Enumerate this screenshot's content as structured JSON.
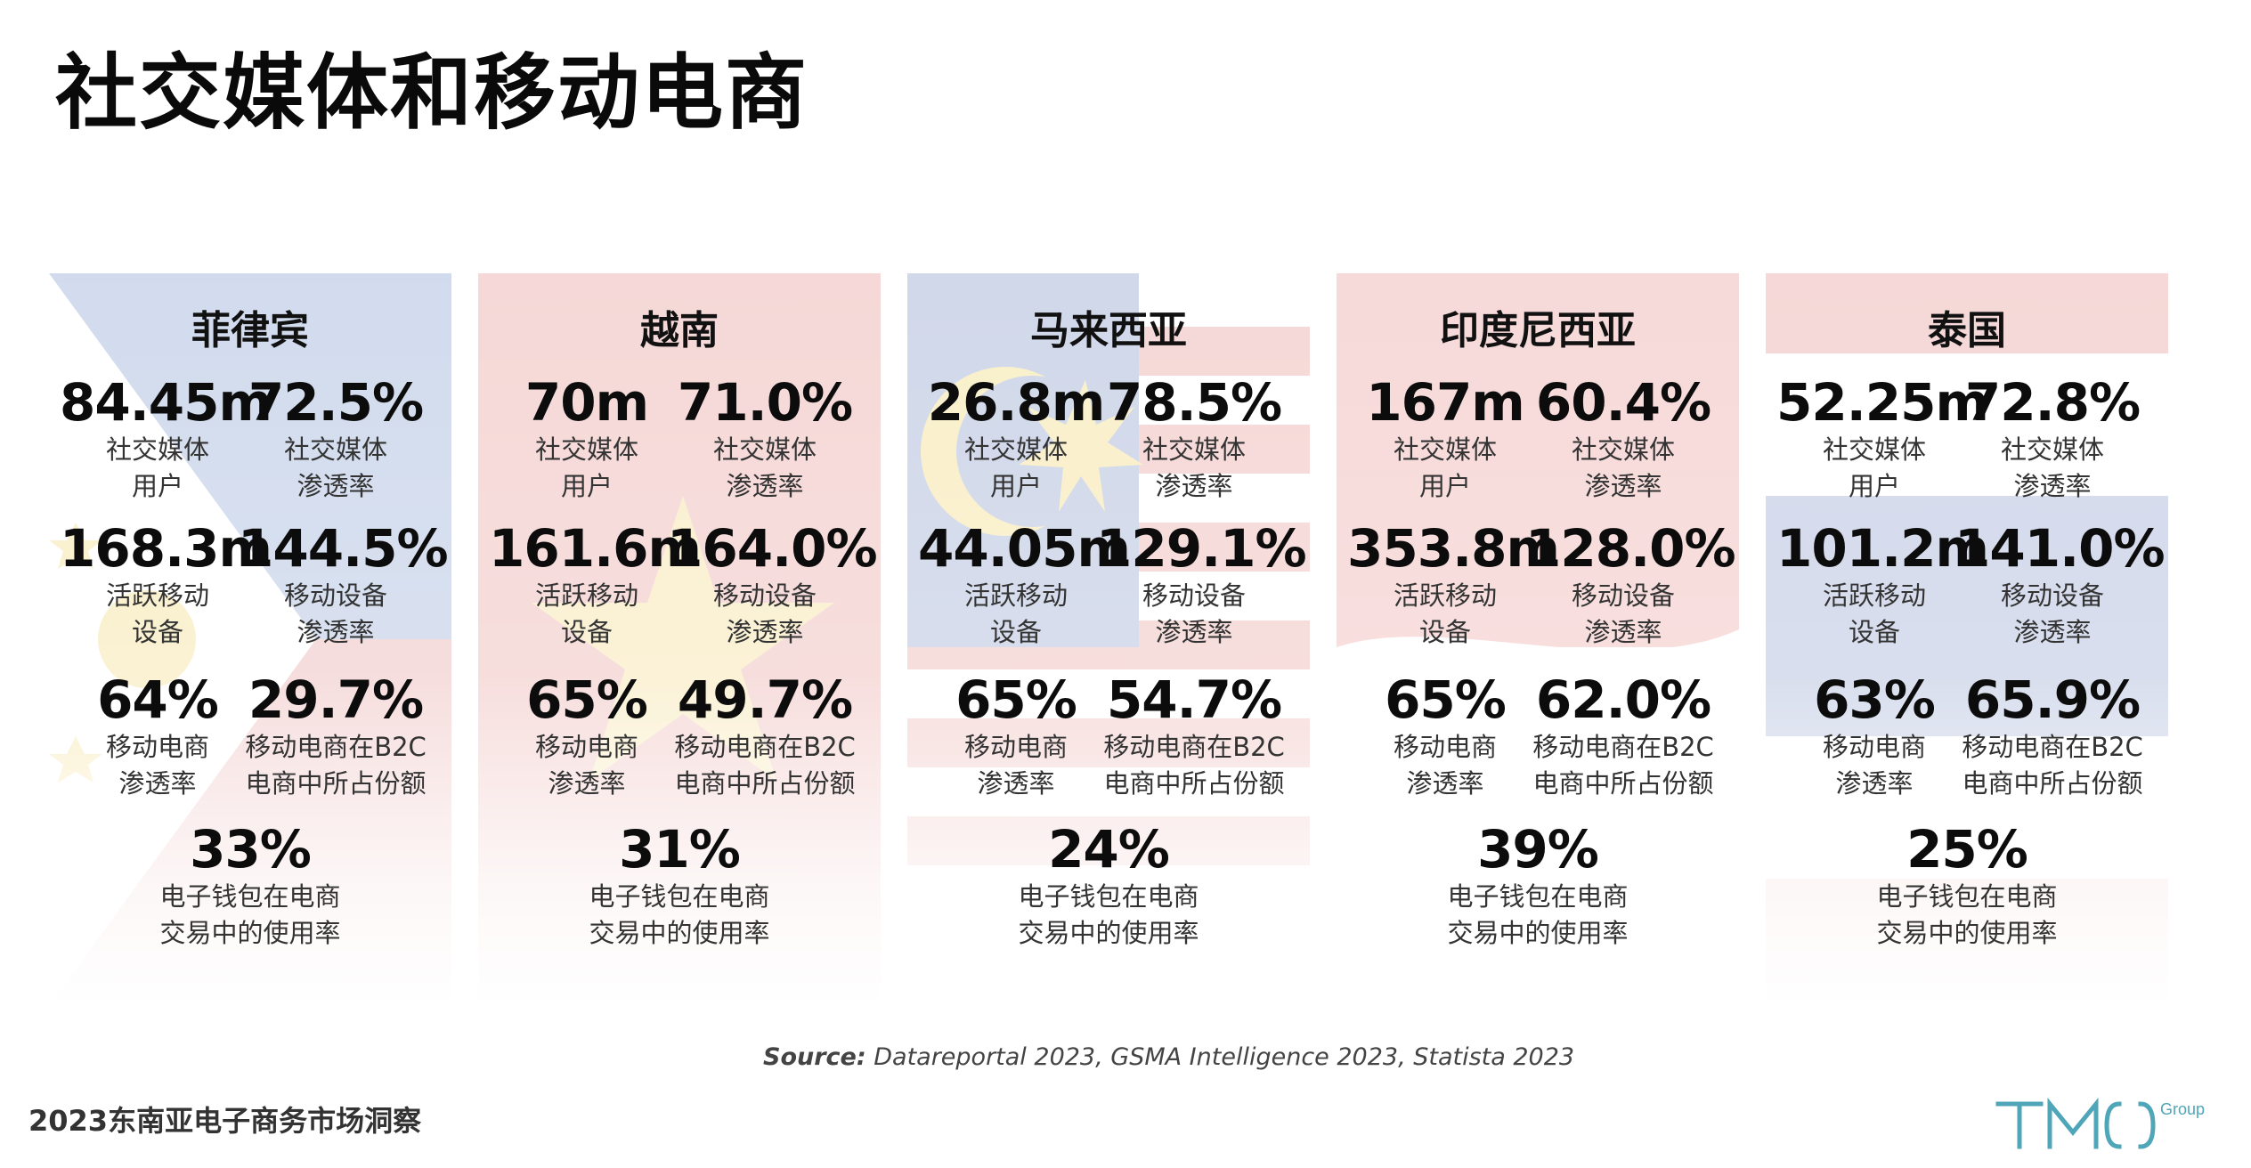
{
  "title": "社交媒体和移动电商",
  "cards": [
    {
      "country": "菲律宾",
      "flag": "philippines",
      "stats": {
        "social_users": {
          "value": "84.45m",
          "label": "社交媒体\n用户"
        },
        "social_penetration": {
          "value": "72.5%",
          "label": "社交媒体\n渗透率"
        },
        "active_devices": {
          "value": "168.3m",
          "label": "活跃移动\n设备"
        },
        "device_penetration": {
          "value": "144.5%",
          "label": "移动设备\n渗透率"
        },
        "mcommerce_penetration": {
          "value": "64%",
          "label": "移动电商\n渗透率"
        },
        "mcommerce_share": {
          "value": "29.7%",
          "label": "移动电商在B2C\n电商中所占份额"
        },
        "ewallet_usage": {
          "value": "33%",
          "label": "电子钱包在电商\n交易中的使用率"
        }
      }
    },
    {
      "country": "越南",
      "flag": "vietnam",
      "stats": {
        "social_users": {
          "value": "70m",
          "label": "社交媒体\n用户"
        },
        "social_penetration": {
          "value": "71.0%",
          "label": "社交媒体\n渗透率"
        },
        "active_devices": {
          "value": "161.6m",
          "label": "活跃移动\n设备"
        },
        "device_penetration": {
          "value": "164.0%",
          "label": "移动设备\n渗透率"
        },
        "mcommerce_penetration": {
          "value": "65%",
          "label": "移动电商\n渗透率"
        },
        "mcommerce_share": {
          "value": "49.7%",
          "label": "移动电商在B2C\n电商中所占份额"
        },
        "ewallet_usage": {
          "value": "31%",
          "label": "电子钱包在电商\n交易中的使用率"
        }
      }
    },
    {
      "country": "马来西亚",
      "flag": "malaysia",
      "stats": {
        "social_users": {
          "value": "26.8m",
          "label": "社交媒体\n用户"
        },
        "social_penetration": {
          "value": "78.5%",
          "label": "社交媒体\n渗透率"
        },
        "active_devices": {
          "value": "44.05m",
          "label": "活跃移动\n设备"
        },
        "device_penetration": {
          "value": "129.1%",
          "label": "移动设备\n渗透率"
        },
        "mcommerce_penetration": {
          "value": "65%",
          "label": "移动电商\n渗透率"
        },
        "mcommerce_share": {
          "value": "54.7%",
          "label": "移动电商在B2C\n电商中所占份额"
        },
        "ewallet_usage": {
          "value": "24%",
          "label": "电子钱包在电商\n交易中的使用率"
        }
      }
    },
    {
      "country": "印度尼西亚",
      "flag": "indonesia",
      "stats": {
        "social_users": {
          "value": "167m",
          "label": "社交媒体\n用户"
        },
        "social_penetration": {
          "value": "60.4%",
          "label": "社交媒体\n渗透率"
        },
        "active_devices": {
          "value": "353.8m",
          "label": "活跃移动\n设备"
        },
        "device_penetration": {
          "value": "128.0%",
          "label": "移动设备\n渗透率"
        },
        "mcommerce_penetration": {
          "value": "65%",
          "label": "移动电商\n渗透率"
        },
        "mcommerce_share": {
          "value": "62.0%",
          "label": "移动电商在B2C\n电商中所占份额"
        },
        "ewallet_usage": {
          "value": "39%",
          "label": "电子钱包在电商\n交易中的使用率"
        }
      }
    },
    {
      "country": "泰国",
      "flag": "thailand",
      "stats": {
        "social_users": {
          "value": "52.25m",
          "label": "社交媒体\n用户"
        },
        "social_penetration": {
          "value": "72.8%",
          "label": "社交媒体\n渗透率"
        },
        "active_devices": {
          "value": "101.2m",
          "label": "活跃移动\n设备"
        },
        "device_penetration": {
          "value": "141.0%",
          "label": "移动设备\n渗透率"
        },
        "mcommerce_penetration": {
          "value": "63%",
          "label": "移动电商\n渗透率"
        },
        "mcommerce_share": {
          "value": "65.9%",
          "label": "移动电商在B2C\n电商中所占份额"
        },
        "ewallet_usage": {
          "value": "25%",
          "label": "电子钱包在电商\n交易中的使用率"
        }
      }
    }
  ],
  "source": {
    "prefix": "Source:",
    "text": " Datareportal 2023, GSMA Intelligence 2023, Statista 2023"
  },
  "footer": {
    "report_title": "2023东南亚电子商务市场洞察",
    "logo_text": "TMO",
    "logo_sub": "Group"
  },
  "colors": {
    "title": "#0a0a0a",
    "logo": "#4fa6b8"
  }
}
